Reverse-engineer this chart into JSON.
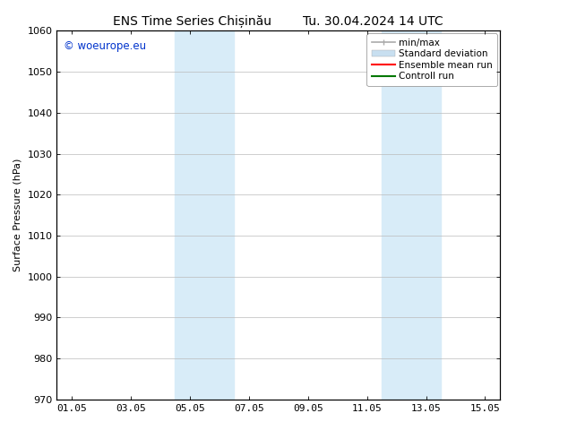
{
  "title_left": "ENS Time Series Chișinău",
  "title_right": "Tu. 30.04.2024 14 UTC",
  "ylabel": "Surface Pressure (hPa)",
  "ylim": [
    970,
    1060
  ],
  "yticks": [
    970,
    980,
    990,
    1000,
    1010,
    1020,
    1030,
    1040,
    1050,
    1060
  ],
  "xtick_labels": [
    "01.05",
    "03.05",
    "05.05",
    "07.05",
    "09.05",
    "11.05",
    "13.05",
    "15.05"
  ],
  "xtick_positions": [
    0,
    2,
    4,
    6,
    8,
    10,
    12,
    14
  ],
  "xlim": [
    -0.5,
    14.5
  ],
  "shaded_bands": [
    {
      "x_start": 3.5,
      "x_end": 5.5,
      "color": "#d8ecf8"
    },
    {
      "x_start": 10.5,
      "x_end": 12.5,
      "color": "#d8ecf8"
    }
  ],
  "background_color": "#ffffff",
  "plot_bg_color": "#ffffff",
  "grid_color": "#bbbbbb",
  "watermark_text": "© woeurope.eu",
  "watermark_color": "#0033cc",
  "legend_items": [
    {
      "label": "min/max",
      "color": "#aaaaaa",
      "lw": 1.2
    },
    {
      "label": "Standard deviation",
      "color": "#c8dff0",
      "lw": 6
    },
    {
      "label": "Ensemble mean run",
      "color": "#ff0000",
      "lw": 1.5
    },
    {
      "label": "Controll run",
      "color": "#007700",
      "lw": 1.5
    }
  ],
  "font_size_title": 10,
  "font_size_axis": 8,
  "font_size_tick": 8,
  "font_size_legend": 7.5,
  "font_size_watermark": 8.5
}
